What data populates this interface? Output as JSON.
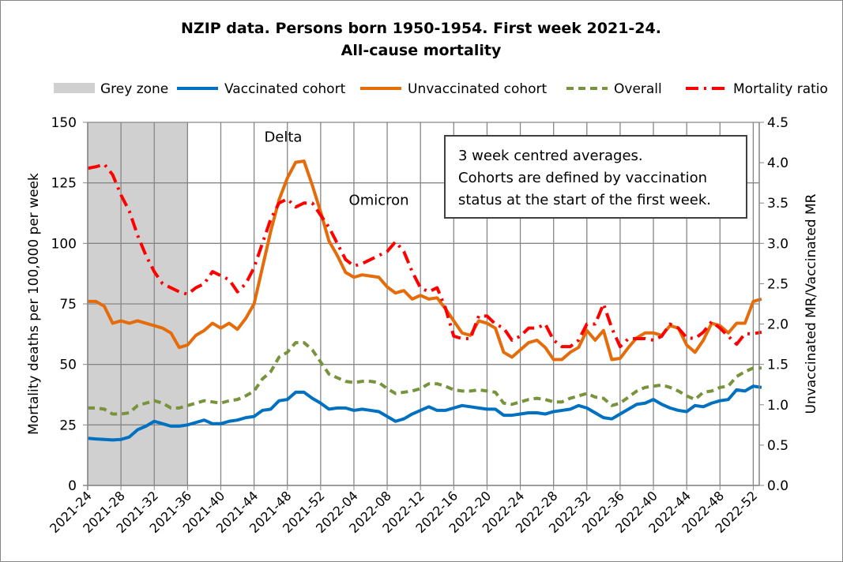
{
  "chart_data": {
    "type": "line",
    "title": [
      "NZIP data. Persons born 1950-1954. First week 2021-24.",
      "All-cause mortality"
    ],
    "ylabel": "Mortality deaths per 100,000 per week",
    "y2label": "Unvaccinated MR/Vaccinated MR",
    "ylim": [
      0,
      150
    ],
    "y2lim": [
      0,
      4.5
    ],
    "yticks": [
      0,
      25,
      50,
      75,
      100,
      125,
      150
    ],
    "y2ticks": [
      "0.0",
      "0.5",
      "1.0",
      "1.5",
      "2.0",
      "2.5",
      "3.0",
      "3.5",
      "4.0",
      "4.5"
    ],
    "xticks": [
      "2021-24",
      "2021-28",
      "2021-32",
      "2021-36",
      "2021-40",
      "2021-44",
      "2021-48",
      "2021-52",
      "2022-04",
      "2022-08",
      "2022-12",
      "2022-16",
      "2022-20",
      "2022-24",
      "2022-28",
      "2022-32",
      "2022-36",
      "2022-40",
      "2022-44",
      "2022-48",
      "2022-52"
    ],
    "grey_zone": {
      "label": "Grey zone",
      "from": "2021-24",
      "to": "2021-36",
      "color": "#d0d0d0"
    },
    "annotations": [
      {
        "text": "Delta",
        "week": 23.5,
        "value": 142
      },
      {
        "text": "Omicron",
        "week": 35,
        "value": 116
      }
    ],
    "note": [
      "3 week centred averages.",
      "Cohorts are defined by vaccination",
      "status at the start of the first week."
    ],
    "legend_position": "top",
    "grid": true,
    "series": [
      {
        "name": "Vaccinated cohort",
        "color": "#0070c0",
        "style": "solid",
        "axis": "left",
        "values": [
          19.5,
          19.2,
          19,
          18.8,
          19,
          20,
          23,
          24.5,
          26.5,
          25.5,
          24.5,
          24.5,
          25,
          26,
          27,
          25.5,
          25.5,
          26.5,
          27,
          28,
          28.5,
          31,
          31.5,
          35,
          35.5,
          38.5,
          38.5,
          36,
          34,
          31.5,
          32,
          32,
          31,
          31.5,
          31,
          30.5,
          28.5,
          26.5,
          27.5,
          29.5,
          31,
          32.5,
          31,
          31,
          32,
          33,
          32.5,
          32,
          31.5,
          31.5,
          29,
          29,
          29.5,
          30,
          30,
          29.5,
          30.5,
          31,
          31.5,
          33,
          32,
          30,
          28,
          27.5,
          29.5,
          31.5,
          33.5,
          34,
          35.5,
          33.5,
          32,
          31,
          30.5,
          33,
          32.5,
          34,
          35,
          35.5,
          39.5,
          39,
          41,
          40.5
        ]
      },
      {
        "name": "Unvaccinated cohort",
        "color": "#e46c0a",
        "style": "solid",
        "axis": "left",
        "values": [
          76,
          76,
          74,
          67,
          68,
          67,
          68,
          67,
          66,
          65,
          63,
          57,
          58,
          62,
          64,
          67,
          65,
          67,
          64.5,
          69,
          75,
          90,
          105,
          118,
          127,
          133.5,
          134,
          124,
          113,
          101,
          95,
          88,
          86,
          87,
          86.5,
          86,
          82,
          79.5,
          80.5,
          77,
          78.5,
          77,
          77.5,
          73,
          68,
          63,
          62,
          68,
          67,
          65,
          55,
          53,
          56,
          59,
          60,
          57,
          52,
          52,
          55,
          57,
          64,
          60,
          64,
          52,
          52.5,
          57,
          61,
          63,
          63,
          62,
          66,
          65,
          58,
          55,
          60,
          67,
          66,
          63,
          67,
          67,
          76,
          77
        ]
      },
      {
        "name": "Overall",
        "color": "#77933c",
        "style": "dashed",
        "axis": "left",
        "values": [
          32,
          32,
          31.5,
          29.5,
          29.5,
          30,
          33,
          34,
          35,
          34,
          32,
          32,
          33,
          34,
          35,
          34.5,
          34,
          35,
          35.5,
          37,
          39,
          44,
          47,
          53,
          55,
          59,
          59,
          56,
          51,
          46,
          44.5,
          43,
          42.5,
          43,
          43,
          42.5,
          40,
          38,
          38.5,
          39,
          40,
          42,
          42,
          41,
          39.5,
          39,
          39,
          39.5,
          39,
          38.5,
          34,
          33.5,
          34.5,
          35.5,
          36,
          35.5,
          34.5,
          34.5,
          36,
          37,
          38,
          36.5,
          36,
          33,
          34,
          36.5,
          39,
          40.5,
          41,
          41.5,
          40.5,
          39,
          37,
          35.5,
          38.5,
          39,
          40.5,
          41,
          45,
          47,
          48.5,
          48.5
        ]
      },
      {
        "name": "Mortality ratio",
        "color": "#ff0000",
        "style": "dashdot",
        "axis": "right",
        "values": [
          3.93,
          3.95,
          3.98,
          3.85,
          3.6,
          3.4,
          3.1,
          2.85,
          2.65,
          2.5,
          2.45,
          2.4,
          2.37,
          2.45,
          2.5,
          2.65,
          2.6,
          2.55,
          2.4,
          2.5,
          2.7,
          3.0,
          3.3,
          3.5,
          3.55,
          3.45,
          3.5,
          3.5,
          3.35,
          3.2,
          3.0,
          2.8,
          2.72,
          2.75,
          2.8,
          2.85,
          2.9,
          3.02,
          2.9,
          2.65,
          2.45,
          2.4,
          2.45,
          2.2,
          1.85,
          1.82,
          1.82,
          2.1,
          2.1,
          2.0,
          1.95,
          1.8,
          1.85,
          1.95,
          1.95,
          2.0,
          1.8,
          1.72,
          1.72,
          1.8,
          2.0,
          2.0,
          2.25,
          1.95,
          1.72,
          1.82,
          1.82,
          1.82,
          1.8,
          1.85,
          2.0,
          1.95,
          1.83,
          1.82,
          1.9,
          2.03,
          1.95,
          1.85,
          1.75,
          1.88,
          1.88,
          1.9
        ]
      }
    ]
  }
}
